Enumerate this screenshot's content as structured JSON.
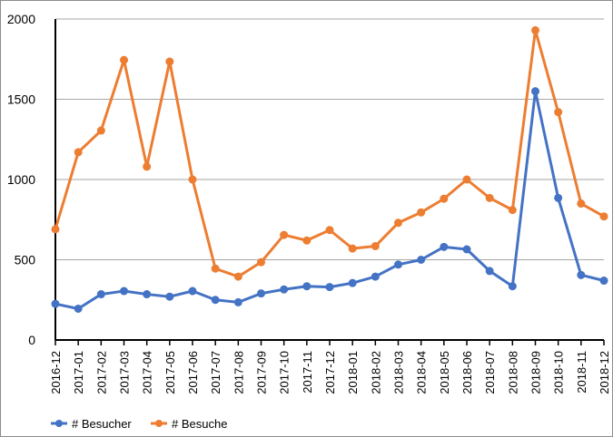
{
  "chart_data": {
    "type": "line",
    "categories": [
      "2016-12",
      "2017-01",
      "2017-02",
      "2017-03",
      "2017-04",
      "2017-05",
      "2017-06",
      "2017-07",
      "2017-08",
      "2017-09",
      "2017-10",
      "2017-11",
      "2017-12",
      "2018-01",
      "2018-02",
      "2018-03",
      "2018-04",
      "2018-05",
      "2018-06",
      "2018-07",
      "2018-08",
      "2018-09",
      "2018-10",
      "2018-11",
      "2018-12"
    ],
    "series": [
      {
        "name": "# Besucher",
        "color": "#4472c4",
        "values": [
          225,
          195,
          285,
          305,
          285,
          270,
          305,
          250,
          235,
          290,
          315,
          335,
          330,
          355,
          395,
          470,
          500,
          580,
          565,
          430,
          335,
          1550,
          885,
          405,
          370
        ]
      },
      {
        "name": "# Besuche",
        "color": "#ed7d31",
        "values": [
          690,
          1170,
          1305,
          1745,
          1080,
          1735,
          1000,
          445,
          395,
          485,
          655,
          620,
          685,
          570,
          585,
          730,
          795,
          880,
          1000,
          885,
          810,
          1930,
          1420,
          850,
          770
        ]
      }
    ],
    "y_ticks": [
      "0",
      "500",
      "1000",
      "1500",
      "2000"
    ],
    "ylim": [
      0,
      2000
    ],
    "grid": "horizontal",
    "legend_position": "bottom-left"
  }
}
